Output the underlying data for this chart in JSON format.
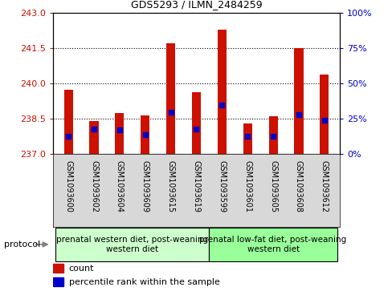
{
  "title": "GDS5293 / ILMN_2484259",
  "samples": [
    "GSM1093600",
    "GSM1093602",
    "GSM1093604",
    "GSM1093609",
    "GSM1093615",
    "GSM1093619",
    "GSM1093599",
    "GSM1093601",
    "GSM1093605",
    "GSM1093608",
    "GSM1093612"
  ],
  "bar_tops": [
    239.75,
    238.4,
    238.75,
    238.65,
    241.7,
    239.65,
    242.3,
    238.3,
    238.6,
    241.5,
    240.4
  ],
  "percentile_ranks": [
    13,
    18,
    17,
    14,
    30,
    18,
    35,
    13,
    13,
    28,
    24
  ],
  "bar_base": 237.0,
  "ylim": [
    237,
    243
  ],
  "y2lim": [
    0,
    100
  ],
  "yticks": [
    237,
    238.5,
    240,
    241.5,
    243
  ],
  "y2ticks": [
    0,
    25,
    50,
    75,
    100
  ],
  "bar_color": "#cc1100",
  "dot_color": "#0000cc",
  "group1_label": "prenatal western diet, post-weaning\nwestern diet",
  "group2_label": "prenatal low-fat diet, post-weaning\nwestern diet",
  "group1_count": 6,
  "group2_count": 5,
  "group1_color": "#ccffcc",
  "group2_color": "#99ff99",
  "protocol_label": "protocol",
  "legend_count": "count",
  "legend_percentile": "percentile rank within the sample",
  "label_bg_color": "#d8d8d8",
  "tick_color_left": "#cc1100",
  "tick_color_right": "#0000cc",
  "bar_width": 0.35
}
